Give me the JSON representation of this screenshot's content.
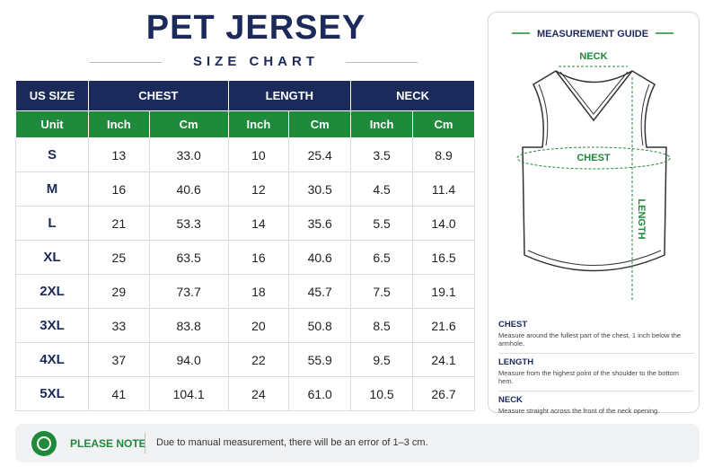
{
  "header": {
    "title": "PET JERSEY",
    "subtitle": "SIZE CHART"
  },
  "table": {
    "groups": [
      "US SIZE",
      "CHEST",
      "LENGTH",
      "NECK"
    ],
    "units": [
      "Unit",
      "Inch",
      "Cm",
      "Inch",
      "Cm",
      "Inch",
      "Cm"
    ],
    "rows": [
      [
        "S",
        "13",
        "33.0",
        "10",
        "25.4",
        "3.5",
        "8.9"
      ],
      [
        "M",
        "16",
        "40.6",
        "12",
        "30.5",
        "4.5",
        "11.4"
      ],
      [
        "L",
        "21",
        "53.3",
        "14",
        "35.6",
        "5.5",
        "14.0"
      ],
      [
        "XL",
        "25",
        "63.5",
        "16",
        "40.6",
        "6.5",
        "16.5"
      ],
      [
        "2XL",
        "29",
        "73.7",
        "18",
        "45.7",
        "7.5",
        "19.1"
      ],
      [
        "3XL",
        "33",
        "83.8",
        "20",
        "50.8",
        "8.5",
        "21.6"
      ],
      [
        "4XL",
        "37",
        "94.0",
        "22",
        "55.9",
        "9.5",
        "24.1"
      ],
      [
        "5XL",
        "41",
        "104.1",
        "24",
        "61.0",
        "10.5",
        "26.7"
      ]
    ]
  },
  "guide": {
    "title": "MEASUREMENT GUIDE",
    "diagram_labels": {
      "neck": "NECK",
      "chest": "CHEST",
      "length": "LENGTH"
    },
    "items": [
      {
        "term": "CHEST",
        "text": "Measure around the fullest part of the chest, 1 inch below the armhole."
      },
      {
        "term": "LENGTH",
        "text": "Measure from the highest point of the shoulder to the bottom hem."
      },
      {
        "term": "NECK",
        "text": "Measure straight across the front of the neck opening."
      }
    ]
  },
  "note": {
    "label": "PLEASE NOTE",
    "text": "Due to manual measurement, there will be an error of 1–3 cm."
  }
}
